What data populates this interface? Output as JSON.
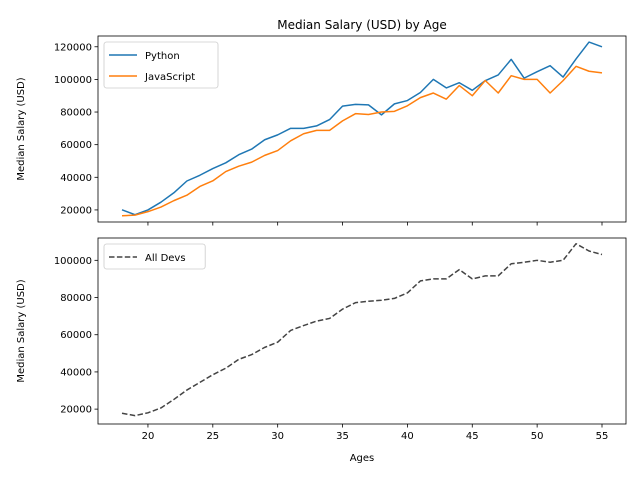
{
  "chart_data": [
    {
      "type": "line",
      "title": "Median Salary (USD) by Age",
      "xlabel": "",
      "ylabel": "Median Salary (USD)",
      "xlim": [
        16.15,
        56.85
      ],
      "ylim": [
        12600,
        126600
      ],
      "yticks": [
        20000,
        40000,
        60000,
        80000,
        100000,
        120000
      ],
      "xticks": [
        20,
        25,
        30,
        35,
        40,
        45,
        50,
        55
      ],
      "show_xtick_labels": false,
      "grid": false,
      "legend_position": "top-left",
      "x": [
        18,
        19,
        20,
        21,
        22,
        23,
        24,
        25,
        26,
        27,
        28,
        29,
        30,
        31,
        32,
        33,
        34,
        35,
        36,
        37,
        38,
        39,
        40,
        41,
        42,
        43,
        44,
        45,
        46,
        47,
        48,
        49,
        50,
        51,
        52,
        53,
        54,
        55
      ],
      "series": [
        {
          "name": "Python",
          "color": "#1f77b4",
          "style": "solid",
          "values": [
            20046,
            17100,
            20000,
            24744,
            30500,
            37732,
            41247,
            45372,
            48876,
            53850,
            57287,
            63016,
            65998,
            70003,
            70000,
            71496,
            75370,
            83640,
            84666,
            84392,
            78254,
            85000,
            87038,
            91991,
            100000,
            94796,
            97962,
            93302,
            99240,
            102736,
            112285,
            100771,
            104708,
            108423,
            101407,
            112542,
            122870,
            120000
          ]
        },
        {
          "name": "JavaScript",
          "color": "#ff7f0e",
          "style": "solid",
          "values": [
            16446,
            16791,
            18942,
            21780,
            25704,
            29000,
            34372,
            37810,
            43515,
            46823,
            49293,
            53437,
            56373,
            62375,
            66674,
            68745,
            68746,
            74583,
            79000,
            78508,
            79996,
            80403,
            83820,
            88833,
            91660,
            87892,
            96243,
            90000,
            99313,
            91660,
            102264,
            100000,
            100000,
            91660,
            99240,
            108000,
            105000,
            104000
          ]
        }
      ]
    },
    {
      "type": "line",
      "title": "",
      "xlabel": "Ages",
      "ylabel": "Median Salary (USD)",
      "xlim": [
        16.15,
        56.85
      ],
      "ylim": [
        12000,
        112000
      ],
      "yticks": [
        20000,
        40000,
        60000,
        80000,
        100000
      ],
      "xticks": [
        20,
        25,
        30,
        35,
        40,
        45,
        50,
        55
      ],
      "show_xtick_labels": true,
      "grid": false,
      "legend_position": "top-left",
      "x": [
        18,
        19,
        20,
        21,
        22,
        23,
        24,
        25,
        26,
        27,
        28,
        29,
        30,
        31,
        32,
        33,
        34,
        35,
        36,
        37,
        38,
        39,
        40,
        41,
        42,
        43,
        44,
        45,
        46,
        47,
        48,
        49,
        50,
        51,
        52,
        53,
        54,
        55
      ],
      "series": [
        {
          "name": "All Devs",
          "color": "#444444",
          "style": "dashed",
          "values": [
            17784,
            16500,
            18012,
            20628,
            25206,
            30252,
            34368,
            38496,
            42000,
            46752,
            49320,
            53200,
            56000,
            62316,
            64928,
            67317,
            68748,
            73752,
            77232,
            78000,
            78508,
            79536,
            82488,
            88935,
            90000,
            90056,
            95000,
            90000,
            91633,
            91660,
            98150,
            98964,
            100000,
            98988,
            100000,
            108923,
            105000,
            103117
          ]
        }
      ]
    }
  ]
}
